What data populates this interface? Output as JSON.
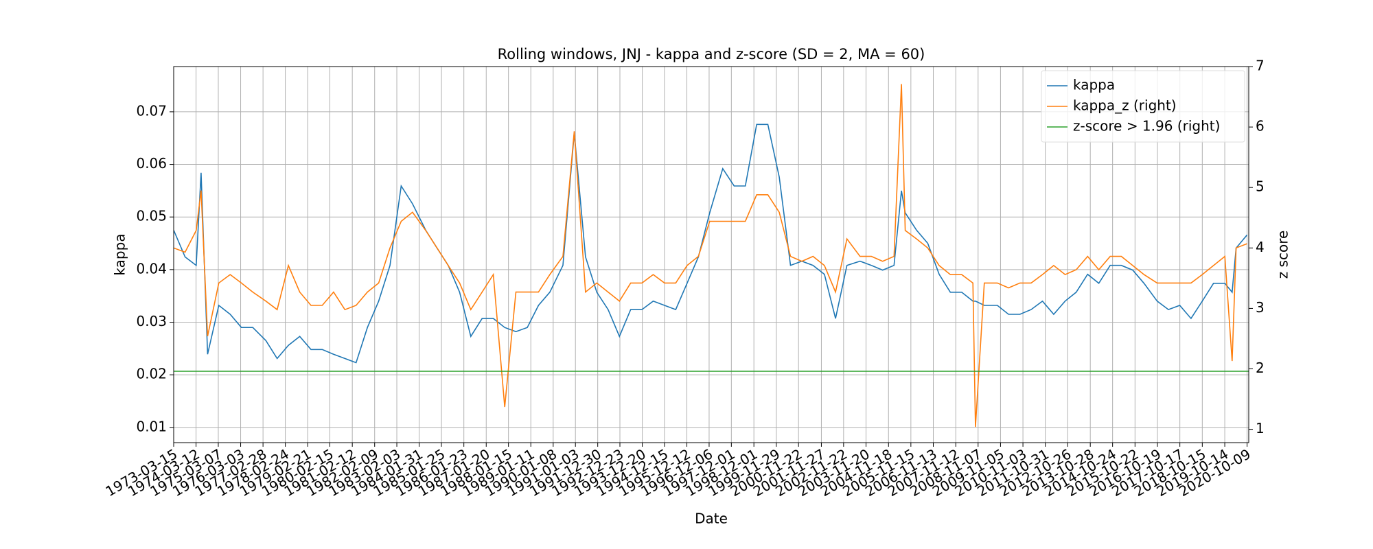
{
  "chart_data": {
    "type": "line",
    "title": "Rolling windows, JNJ - kappa and z-score (SD = 2, MA = 60)",
    "x_label": "Date",
    "y_label": "kappa",
    "y2_label": "z score",
    "grid": true,
    "legend_loc": "upper right",
    "xlim": [
      "1973-03-15",
      "2020-11-05"
    ],
    "xticks": [
      "1973-03-15",
      "1974-03-12",
      "1975-03-07",
      "1976-03-03",
      "1977-02-28",
      "1978-02-24",
      "1979-02-21",
      "1980-02-15",
      "1981-02-12",
      "1982-02-09",
      "1983-02-03",
      "1984-01-31",
      "1985-01-25",
      "1986-01-23",
      "1987-01-20",
      "1988-01-15",
      "1989-01-11",
      "1990-01-08",
      "1991-01-03",
      "1991-12-30",
      "1992-12-23",
      "1993-12-20",
      "1994-12-15",
      "1995-12-12",
      "1996-12-06",
      "1997-12-01",
      "1998-12-01",
      "1999-11-29",
      "2000-11-22",
      "2001-11-27",
      "2002-11-22",
      "2003-11-20",
      "2004-11-18",
      "2005-11-15",
      "2006-11-13",
      "2007-11-12",
      "2008-11-07",
      "2009-11-05",
      "2010-11-03",
      "2011-10-31",
      "2012-10-26",
      "2013-10-28",
      "2014-10-24",
      "2015-10-22",
      "2016-10-19",
      "2017-10-17",
      "2018-10-15",
      "2019-10-14",
      "2020-10-09"
    ],
    "ylim": [
      0.0071,
      0.0786
    ],
    "yticks": [
      0.01,
      0.02,
      0.03,
      0.04,
      0.05,
      0.06,
      0.07
    ],
    "y2lim": [
      0.78,
      7.0
    ],
    "y2ticks": [
      1,
      2,
      3,
      4,
      5,
      6,
      7
    ],
    "x": [
      "1973-03-15",
      "1973-09-15",
      "1974-03-15",
      "1974-06-01",
      "1974-09-15",
      "1975-03-15",
      "1975-09-15",
      "1976-03-15",
      "1976-09-15",
      "1977-04-15",
      "1977-10-15",
      "1978-04-15",
      "1978-10-15",
      "1979-04-15",
      "1979-10-15",
      "1980-04-15",
      "1980-10-15",
      "1981-04-15",
      "1981-10-15",
      "1982-04-15",
      "1982-10-15",
      "1983-04-15",
      "1983-10-15",
      "1984-05-15",
      "1984-11-15",
      "1985-05-15",
      "1985-11-15",
      "1986-05-15",
      "1986-11-15",
      "1987-05-15",
      "1987-11-15",
      "1988-05-15",
      "1988-11-15",
      "1989-05-15",
      "1989-11-15",
      "1990-06-15",
      "1990-12-15",
      "1991-06-15",
      "1991-12-15",
      "1992-06-15",
      "1992-12-15",
      "1993-06-15",
      "1993-12-15",
      "1994-06-15",
      "1994-12-15",
      "1995-06-15",
      "1995-12-15",
      "1996-06-15",
      "1996-12-15",
      "1997-07-15",
      "1998-01-15",
      "1998-07-15",
      "1999-01-15",
      "1999-07-15",
      "2000-01-15",
      "2000-07-15",
      "2001-01-15",
      "2001-07-15",
      "2002-01-15",
      "2002-07-15",
      "2003-01-15",
      "2003-08-15",
      "2004-02-15",
      "2004-08-15",
      "2005-02-15",
      "2005-06-15",
      "2005-08-15",
      "2006-02-15",
      "2006-08-15",
      "2007-02-15",
      "2007-08-15",
      "2008-02-15",
      "2008-08-15",
      "2008-09-25",
      "2009-02-15",
      "2009-09-15",
      "2010-03-15",
      "2010-09-15",
      "2011-03-15",
      "2011-09-15",
      "2012-03-15",
      "2012-09-15",
      "2013-03-15",
      "2013-09-15",
      "2014-03-15",
      "2014-09-15",
      "2015-03-15",
      "2015-09-15",
      "2016-03-15",
      "2016-10-15",
      "2017-04-15",
      "2017-10-15",
      "2018-04-15",
      "2018-10-15",
      "2019-04-15",
      "2019-10-15",
      "2020-02-10",
      "2020-04-15",
      "2020-10-09"
    ],
    "series": [
      {
        "name": "kappa",
        "color": "#1f77b4",
        "axis": "y",
        "values": [
          0.0475,
          0.0424,
          0.0408,
          0.0584,
          0.0239,
          0.0332,
          0.0315,
          0.029,
          0.029,
          0.0265,
          0.0231,
          0.0256,
          0.0273,
          0.0248,
          0.0248,
          0.0239,
          0.0231,
          0.0223,
          0.029,
          0.034,
          0.0408,
          0.0559,
          0.0525,
          0.0475,
          0.0441,
          0.0408,
          0.0357,
          0.0273,
          0.0307,
          0.0307,
          0.029,
          0.0282,
          0.029,
          0.0332,
          0.0357,
          0.0408,
          0.066,
          0.0424,
          0.0357,
          0.0324,
          0.0273,
          0.0324,
          0.0324,
          0.034,
          0.0332,
          0.0324,
          0.0374,
          0.0424,
          0.0508,
          0.0592,
          0.0559,
          0.0559,
          0.0676,
          0.0676,
          0.0576,
          0.0408,
          0.0416,
          0.0408,
          0.0391,
          0.0307,
          0.0408,
          0.0416,
          0.0408,
          0.0399,
          0.0408,
          0.055,
          0.0508,
          0.0475,
          0.045,
          0.0391,
          0.0357,
          0.0357,
          0.034,
          0.034,
          0.0332,
          0.0332,
          0.0315,
          0.0315,
          0.0324,
          0.034,
          0.0315,
          0.034,
          0.0357,
          0.0391,
          0.0374,
          0.0408,
          0.0408,
          0.0399,
          0.0374,
          0.034,
          0.0324,
          0.0332,
          0.0307,
          0.034,
          0.0374,
          0.0374,
          0.0357,
          0.0441,
          0.0466
        ]
      },
      {
        "name": "kappa_z (right)",
        "color": "#ff7f0e",
        "axis": "y2",
        "values": [
          4.0,
          3.93,
          4.29,
          4.95,
          2.54,
          3.42,
          3.56,
          3.42,
          3.27,
          3.12,
          2.98,
          3.71,
          3.27,
          3.05,
          3.05,
          3.27,
          2.98,
          3.05,
          3.27,
          3.42,
          4.0,
          4.44,
          4.59,
          4.29,
          4.0,
          3.71,
          3.42,
          2.98,
          3.27,
          3.56,
          1.37,
          3.27,
          3.27,
          3.27,
          3.56,
          3.86,
          5.93,
          3.27,
          3.42,
          3.27,
          3.12,
          3.42,
          3.42,
          3.56,
          3.42,
          3.42,
          3.71,
          3.86,
          4.44,
          4.44,
          4.44,
          4.44,
          4.88,
          4.88,
          4.59,
          3.86,
          3.78,
          3.86,
          3.71,
          3.27,
          4.15,
          3.86,
          3.86,
          3.78,
          3.86,
          6.71,
          4.29,
          4.15,
          4.0,
          3.71,
          3.56,
          3.56,
          3.42,
          1.04,
          3.42,
          3.42,
          3.34,
          3.42,
          3.42,
          3.56,
          3.71,
          3.56,
          3.64,
          3.86,
          3.64,
          3.86,
          3.86,
          3.71,
          3.56,
          3.42,
          3.42,
          3.42,
          3.42,
          3.56,
          3.71,
          3.86,
          2.13,
          4.0,
          4.07
        ]
      },
      {
        "name": "z-score > 1.96 (right)",
        "color": "#2ca02c",
        "axis": "y2",
        "x": [
          "1973-03-15",
          "2020-11-05"
        ],
        "values": [
          1.96,
          1.96
        ]
      }
    ]
  }
}
